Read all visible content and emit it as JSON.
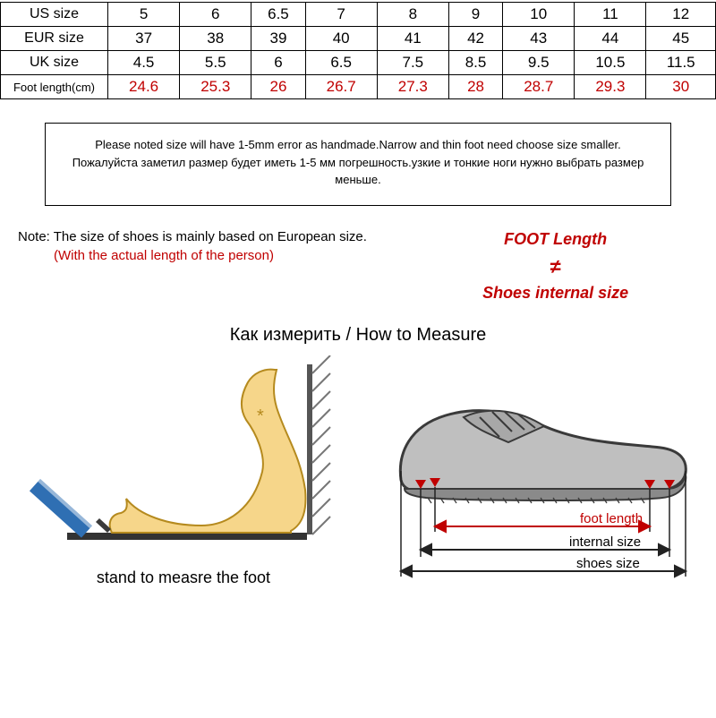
{
  "table": {
    "rows": [
      {
        "label": "US size",
        "label_small": false,
        "red": false,
        "vals": [
          "5",
          "6",
          "6.5",
          "7",
          "8",
          "9",
          "10",
          "11",
          "12"
        ]
      },
      {
        "label": "EUR size",
        "label_small": false,
        "red": false,
        "vals": [
          "37",
          "38",
          "39",
          "40",
          "41",
          "42",
          "43",
          "44",
          "45"
        ]
      },
      {
        "label": "UK size",
        "label_small": false,
        "red": false,
        "vals": [
          "4.5",
          "5.5",
          "6",
          "6.5",
          "7.5",
          "8.5",
          "9.5",
          "10.5",
          "11.5"
        ]
      },
      {
        "label": "Foot length(cm)",
        "label_small": true,
        "red": true,
        "vals": [
          "24.6",
          "25.3",
          "26",
          "26.7",
          "27.3",
          "28",
          "28.7",
          "29.3",
          "30"
        ]
      }
    ]
  },
  "notice": {
    "line1": "Please noted size will have 1-5mm error as handmade.Narrow and thin foot need choose size smaller.",
    "line2": "Пожалуйста заметил размер будет иметь 1-5 мм погрешность.узкие и тонкие ноги нужно выбрать размер",
    "line3": "меньше."
  },
  "note": {
    "line1": "Note: The size of shoes is mainly based on European size.",
    "line2": "(With the actual length of the person)"
  },
  "foot_box": {
    "foot_length": "FOOT Length",
    "neq": "≠",
    "sis": "Shoes internal size"
  },
  "measure_title": "Как измерить / How to Measure",
  "diag_left": {
    "caption": "stand to measre the foot",
    "foot_fill": "#f6d68a",
    "foot_stroke": "#b58a1e",
    "floor_color": "#333333",
    "wall_color": "#888888",
    "pencil_body": "#2f6fb3",
    "pencil_tip": "#3a3a3a"
  },
  "diag_right": {
    "shoe_fill": "#bfbfbf",
    "shoe_stroke": "#3a3a3a",
    "sole_color": "#8a8a8a",
    "arrow_color": "#222222",
    "red_arrow": "#c00000",
    "red_label": "foot length",
    "black_label1": "internal size",
    "black_label2": "shoes size",
    "red_label_color": "#c00000"
  }
}
